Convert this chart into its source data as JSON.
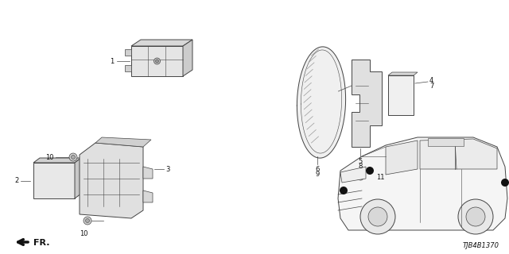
{
  "bg_color": "#ffffff",
  "diagram_id": "TJB4B1370",
  "line_color": "#444444",
  "dark_color": "#111111"
}
